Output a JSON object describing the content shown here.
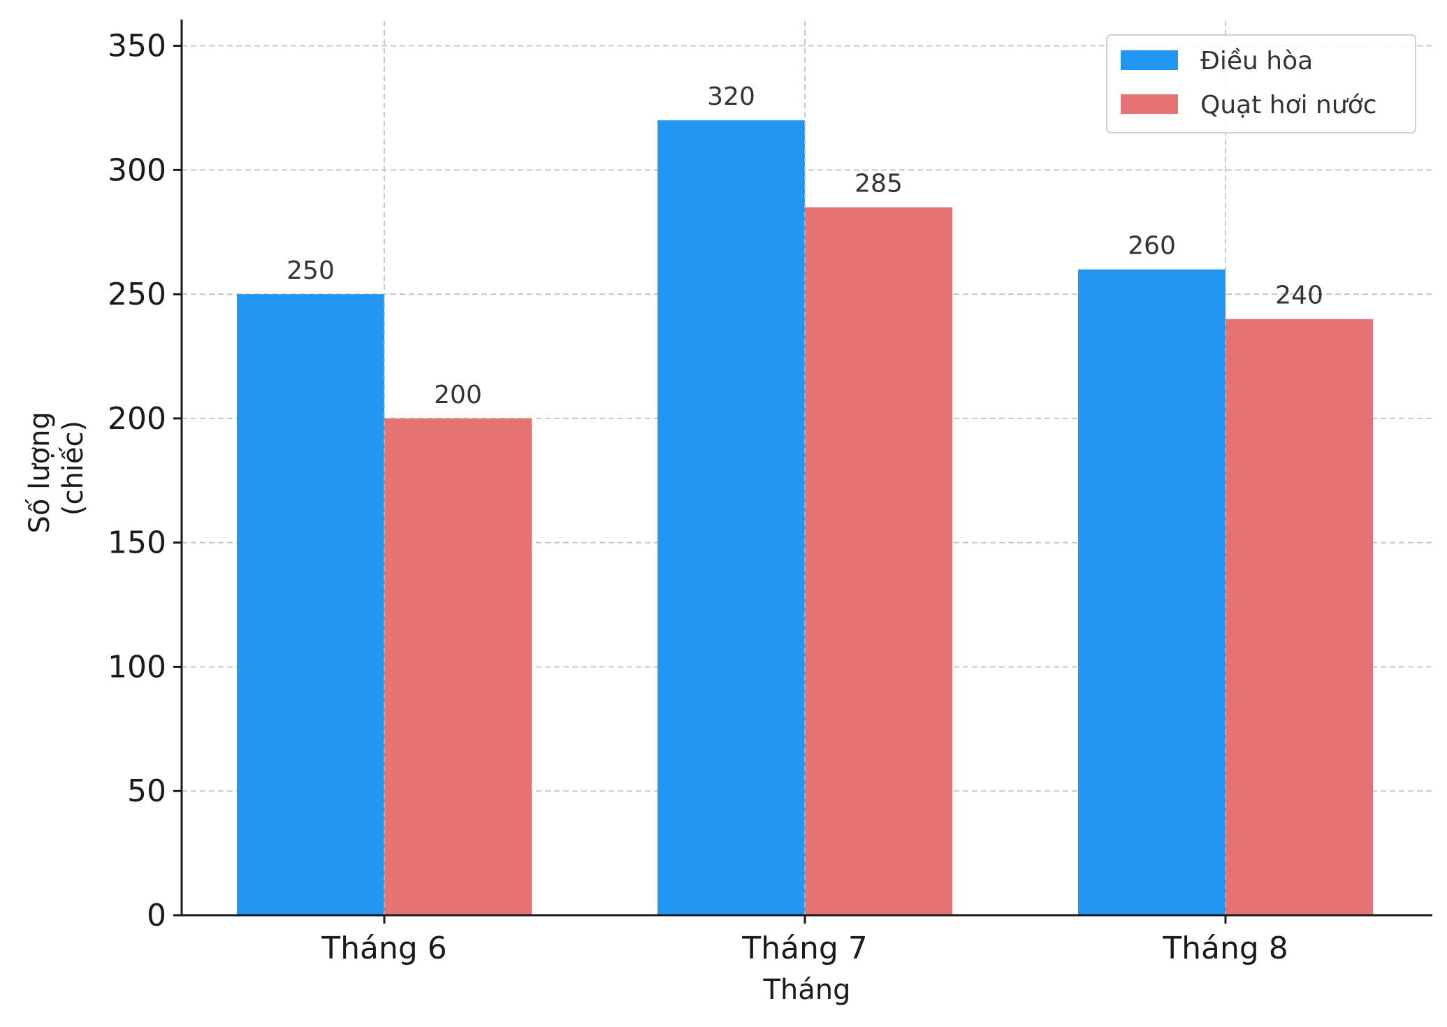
{
  "chart_data": {
    "type": "bar",
    "categories": [
      "Tháng 6",
      "Tháng 7",
      "Tháng 8"
    ],
    "series": [
      {
        "name": "Điều hòa",
        "values": [
          250,
          320,
          260
        ],
        "color": "#2196F3"
      },
      {
        "name": "Quạt hơi nước",
        "values": [
          200,
          285,
          240
        ],
        "color": "#E57373"
      }
    ],
    "xlabel": "Tháng",
    "ylabel_lines": [
      "Số lượng",
      "(chiếc)"
    ],
    "ylim": [
      0,
      360
    ],
    "yticks": [
      0,
      50,
      100,
      150,
      200,
      250,
      300,
      350
    ],
    "grid": true,
    "legend_position": "top-right",
    "data_labels": true
  }
}
